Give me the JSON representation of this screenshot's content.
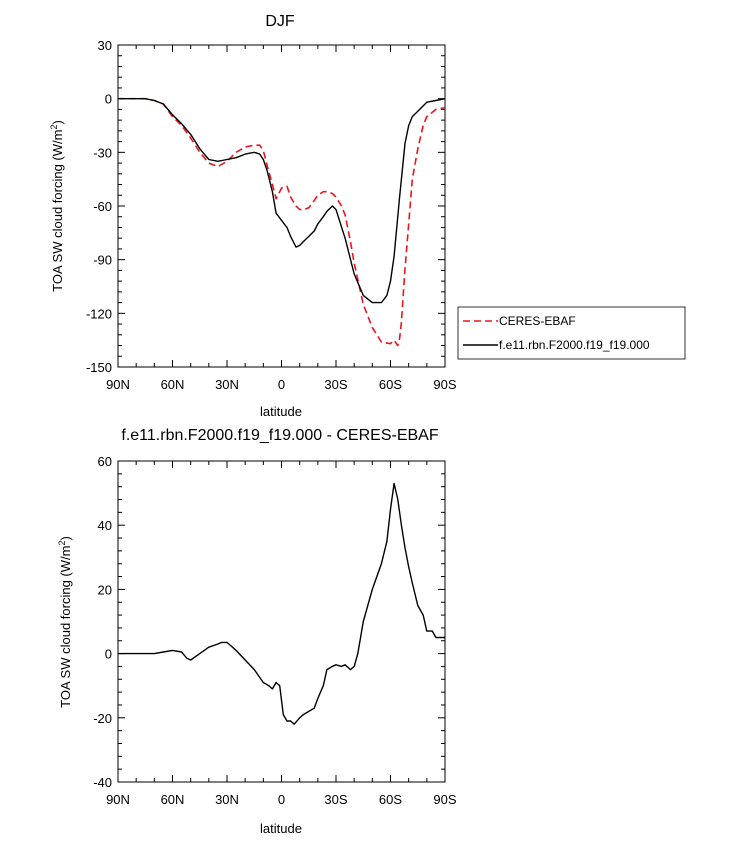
{
  "chart_data": [
    {
      "type": "line",
      "title": "DJF",
      "xlabel": "latitude",
      "ylabel": "TOA SW cloud forcing (W/m",
      "ylabel_sup": "2",
      "ylabel_close": ")",
      "xlim": [
        90,
        -90
      ],
      "ylim": [
        -150,
        30
      ],
      "x_tick_values": [
        90,
        60,
        30,
        0,
        -30,
        -60,
        -90
      ],
      "x_tick_labels": [
        "90N",
        "60N",
        "30N",
        "0",
        "30S",
        "60S",
        "90S"
      ],
      "y_tick_values": [
        30,
        0,
        -30,
        -60,
        -90,
        -120,
        -150
      ],
      "y_tick_labels": [
        "30",
        "0",
        "-30",
        "-60",
        "-90",
        "-120",
        "-150"
      ],
      "legend": {
        "placement": "outside-right"
      },
      "series": [
        {
          "name": "CERES-EBAF",
          "color": "#e8161d",
          "dash": "dashed",
          "x": [
            90,
            80,
            75,
            70,
            65,
            60,
            55,
            50,
            45,
            40,
            35,
            30,
            25,
            20,
            15,
            12,
            10,
            8,
            5,
            3,
            0,
            -3,
            -5,
            -8,
            -10,
            -12,
            -15,
            -18,
            -20,
            -23,
            -25,
            -28,
            -30,
            -33,
            -35,
            -38,
            -40,
            -45,
            -50,
            -55,
            -60,
            -62,
            -64,
            -65,
            -66,
            -68,
            -70,
            -72,
            -75,
            -78,
            -80,
            -85,
            -90
          ],
          "y": [
            0,
            0,
            0,
            -1,
            -3,
            -10,
            -15,
            -22,
            -30,
            -36,
            -38,
            -35,
            -30,
            -27,
            -26,
            -26,
            -29,
            -37,
            -48,
            -56,
            -50,
            -49,
            -55,
            -60,
            -62,
            -62,
            -61,
            -57,
            -54,
            -52,
            -52,
            -53,
            -55,
            -60,
            -65,
            -80,
            -92,
            -115,
            -128,
            -136,
            -137,
            -135,
            -138,
            -134,
            -125,
            -95,
            -70,
            -45,
            -28,
            -15,
            -10,
            -6,
            -5
          ]
        },
        {
          "name": "f.e11.rbn.F2000.f19_f19.000",
          "color": "#000000",
          "dash": "solid",
          "x": [
            90,
            80,
            75,
            70,
            65,
            60,
            55,
            50,
            45,
            40,
            35,
            30,
            25,
            20,
            15,
            12,
            10,
            8,
            5,
            3,
            0,
            -3,
            -5,
            -8,
            -10,
            -12,
            -15,
            -18,
            -20,
            -23,
            -25,
            -28,
            -30,
            -35,
            -40,
            -45,
            -50,
            -55,
            -58,
            -60,
            -62,
            -65,
            -68,
            -70,
            -72,
            -75,
            -80,
            -85,
            -90
          ],
          "y": [
            0,
            0,
            0,
            -1,
            -3,
            -9,
            -14,
            -20,
            -28,
            -34,
            -35,
            -34,
            -33,
            -31,
            -30,
            -31,
            -34,
            -40,
            -52,
            -64,
            -68,
            -72,
            -77,
            -83,
            -82,
            -80,
            -77,
            -74,
            -70,
            -66,
            -63,
            -60,
            -62,
            -78,
            -98,
            -110,
            -114,
            -114,
            -110,
            -102,
            -88,
            -55,
            -25,
            -15,
            -10,
            -7,
            -2,
            -1,
            0
          ]
        }
      ]
    },
    {
      "type": "line",
      "title": "f.e11.rbn.F2000.f19_f19.000 - CERES-EBAF",
      "xlabel": "latitude",
      "ylabel": "TOA SW cloud forcing (W/m",
      "ylabel_sup": "2",
      "ylabel_close": ")",
      "xlim": [
        90,
        -90
      ],
      "ylim": [
        -40,
        60
      ],
      "x_tick_values": [
        90,
        60,
        30,
        0,
        -30,
        -60,
        -90
      ],
      "x_tick_labels": [
        "90N",
        "60N",
        "30N",
        "0",
        "30S",
        "60S",
        "90S"
      ],
      "y_tick_values": [
        60,
        40,
        20,
        0,
        -20,
        -40
      ],
      "y_tick_labels": [
        "60",
        "40",
        "20",
        "0",
        "-20",
        "-40"
      ],
      "series": [
        {
          "name": "",
          "color": "#000000",
          "dash": "solid",
          "x": [
            90,
            80,
            75,
            70,
            65,
            60,
            55,
            52,
            50,
            45,
            40,
            35,
            33,
            30,
            25,
            20,
            15,
            10,
            7,
            5,
            3,
            1,
            -1,
            -3,
            -5,
            -7,
            -10,
            -12,
            -15,
            -18,
            -20,
            -23,
            -25,
            -28,
            -30,
            -33,
            -35,
            -38,
            -40,
            -42,
            -45,
            -50,
            -55,
            -58,
            -60,
            -62,
            -64,
            -66,
            -68,
            -70,
            -72,
            -75,
            -78,
            -80,
            -83,
            -85,
            -90
          ],
          "y": [
            0,
            0,
            0,
            0,
            0.5,
            1,
            0.5,
            -1.5,
            -2,
            0,
            2,
            3,
            3.5,
            3.5,
            1,
            -2,
            -5,
            -9,
            -10,
            -11,
            -9,
            -10,
            -19,
            -21,
            -21,
            -22,
            -20,
            -19,
            -18,
            -17,
            -14,
            -10,
            -5,
            -4,
            -3.5,
            -4,
            -3.5,
            -5,
            -4,
            0,
            10,
            20,
            28,
            35,
            45,
            53,
            48,
            40,
            33,
            27,
            22,
            15,
            12,
            7,
            7,
            5,
            5
          ]
        }
      ]
    }
  ]
}
